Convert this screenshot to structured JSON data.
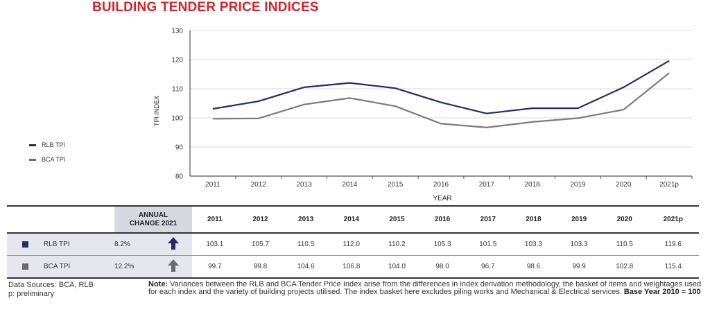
{
  "title": "BUILDING TENDER PRICE INDICES",
  "legend": [
    {
      "label": "RLB TPI",
      "color": "#1f2d6b"
    },
    {
      "label": "BCA TPI",
      "color": "#6b6b6b"
    }
  ],
  "chart_data": {
    "type": "line",
    "categories": [
      "2011",
      "2012",
      "2013",
      "2014",
      "2015",
      "2016",
      "2017",
      "2018",
      "2019",
      "2020",
      "2021p"
    ],
    "series": [
      {
        "name": "RLB TPI",
        "color": "#1f2d6b",
        "values": [
          103.1,
          105.7,
          110.5,
          112.0,
          110.2,
          105.3,
          101.5,
          103.3,
          103.3,
          110.5,
          119.6
        ]
      },
      {
        "name": "BCA TPI",
        "color": "#7a7a7a",
        "values": [
          99.7,
          99.8,
          104.6,
          106.8,
          104.0,
          98.0,
          96.7,
          98.6,
          99.9,
          102.8,
          115.4
        ]
      }
    ],
    "xlabel": "YEAR",
    "ylabel": "TPI INDEX",
    "ylim": [
      80,
      130
    ],
    "yticks": [
      80,
      90,
      100,
      110,
      120,
      130
    ],
    "grid": true
  },
  "table": {
    "header_change": [
      "ANNUAL",
      "CHANGE 2021"
    ],
    "years": [
      "2011",
      "2012",
      "2013",
      "2014",
      "2015",
      "2016",
      "2017",
      "2018",
      "2019",
      "2020",
      "2021p"
    ],
    "rows": [
      {
        "label": "RLB TPI",
        "change": "8.2%",
        "color": "#1f2d6b",
        "arrow_color": "#1f2d6b",
        "values": [
          "103.1",
          "105.7",
          "110.5",
          "112.0",
          "110.2",
          "105.3",
          "101.5",
          "103.3",
          "103.3",
          "110.5",
          "119.6"
        ]
      },
      {
        "label": "BCA TPI",
        "change": "12.2%",
        "color": "#6b6b6b",
        "arrow_color": "#6b6b6b",
        "values": [
          "99.7",
          "99.8",
          "104.6",
          "106.8",
          "104.0",
          "98.0",
          "96.7",
          "98.6",
          "99.9",
          "102.8",
          "115.4"
        ]
      }
    ]
  },
  "footer": {
    "sources": "Data Sources: BCA, RLB",
    "preliminary": "p: preliminary",
    "note_label": "Note:",
    "note_text": " Variances between the RLB and BCA Tender Price Index arise from the differences in index derivation methodology, the basket of items and weightages used for each index and the variety of building projects utilised. The index basket here excludes piling works and Mechanical & Electrical services. ",
    "base_year": "Base Year 2010 = 100"
  }
}
